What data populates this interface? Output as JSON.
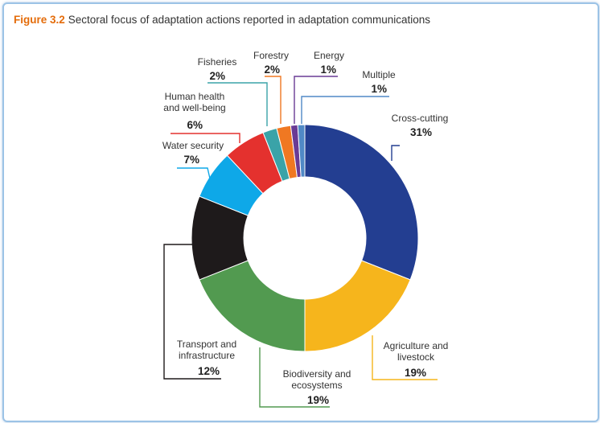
{
  "figure": {
    "number": "Figure 3.2",
    "caption": "Sectoral focus of adaptation actions reported in adaptation communications"
  },
  "chart_data": {
    "type": "pie",
    "style": "donut",
    "slices": [
      {
        "name": [
          "Cross-cutting"
        ],
        "value": 31,
        "value_label": "31%",
        "color": "#233e91"
      },
      {
        "name": [
          "Agriculture and",
          "livestock"
        ],
        "value": 19,
        "value_label": "19%",
        "color": "#f6b51c"
      },
      {
        "name": [
          "Biodiversity and",
          "ecosystems"
        ],
        "value": 19,
        "value_label": "19%",
        "color": "#529a50"
      },
      {
        "name": [
          "Transport and",
          "infrastructure"
        ],
        "value": 12,
        "value_label": "12%",
        "color": "#1e1a1b"
      },
      {
        "name": [
          "Water security"
        ],
        "value": 7,
        "value_label": "7%",
        "color": "#0ea8e8"
      },
      {
        "name": [
          "Human health",
          "and well-being"
        ],
        "value": 6,
        "value_label": "6%",
        "color": "#e4312e"
      },
      {
        "name": [
          "Fisheries"
        ],
        "value": 2,
        "value_label": "2%",
        "color": "#3aa3a8"
      },
      {
        "name": [
          "Forestry"
        ],
        "value": 2,
        "value_label": "2%",
        "color": "#f07822"
      },
      {
        "name": [
          "Energy"
        ],
        "value": 1,
        "value_label": "1%",
        "color": "#6a3b95"
      },
      {
        "name": [
          "Multiple"
        ],
        "value": 1,
        "value_label": "1%",
        "color": "#5089c6"
      }
    ]
  }
}
